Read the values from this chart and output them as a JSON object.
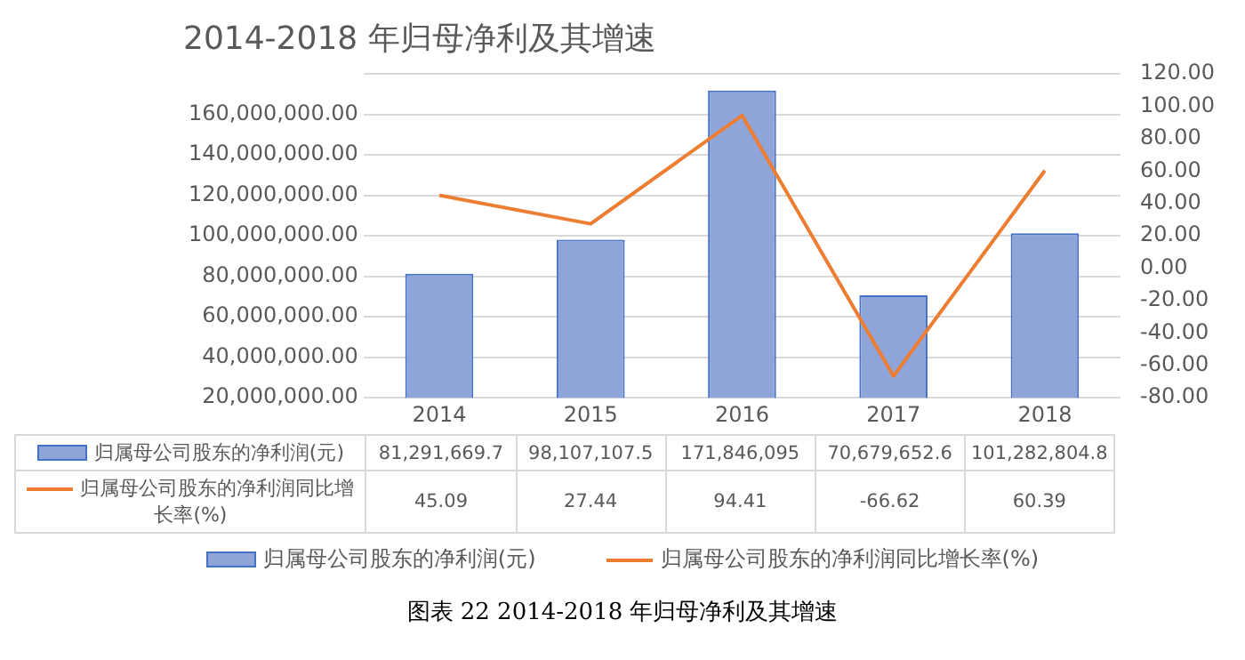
{
  "chart_data": {
    "type": "bar",
    "title": "2014-2018 年归母净利及其增速",
    "categories": [
      "2014",
      "2015",
      "2016",
      "2017",
      "2018"
    ],
    "series": [
      {
        "name": "归属母公司股东的净利润(元)",
        "color": "#8fa5d9",
        "values": [
          81291669.7,
          98107107.5,
          171846095,
          70679652.6,
          101282804.8
        ],
        "value_labels": [
          "81,291,669.7",
          "98,107,107.5",
          "171,846,095",
          "70,679,652.6",
          "101,282,804.8"
        ]
      },
      {
        "name": "归属母公司股东的净利润同比增长率(%)",
        "type": "line",
        "axis": "y2",
        "color": "#ed7d31",
        "values": [
          45.09,
          27.44,
          94.41,
          -66.62,
          60.39
        ],
        "value_labels": [
          "45.09",
          "27.44",
          "94.41",
          "-66.62",
          "60.39"
        ]
      }
    ],
    "ylim": [
      20000000,
      180000000
    ],
    "yticks": [
      {
        "value": 20000000,
        "label": "20,000,000.00"
      },
      {
        "value": 40000000,
        "label": "40,000,000.00"
      },
      {
        "value": 60000000,
        "label": "60,000,000.00"
      },
      {
        "value": 80000000,
        "label": "80,000,000.00"
      },
      {
        "value": 100000000,
        "label": "100,000,000.00"
      },
      {
        "value": 120000000,
        "label": "120,000,000.00"
      },
      {
        "value": 140000000,
        "label": "140,000,000.00"
      },
      {
        "value": 160000000,
        "label": "160,000,000.00"
      },
      {
        "value": 180000000,
        "label": null
      }
    ],
    "y2lim": [
      -80,
      120
    ],
    "y2ticks": [
      {
        "value": -80,
        "label": "-80.00"
      },
      {
        "value": -60,
        "label": "-60.00"
      },
      {
        "value": -40,
        "label": "-40.00"
      },
      {
        "value": -20,
        "label": "-20.00"
      },
      {
        "value": 0,
        "label": "0.00"
      },
      {
        "value": 20,
        "label": "20.00"
      },
      {
        "value": 40,
        "label": "40.00"
      },
      {
        "value": 60,
        "label": "60.00"
      },
      {
        "value": 80,
        "label": "80.00"
      },
      {
        "value": 100,
        "label": "100.00"
      },
      {
        "value": 120,
        "label": "120.00"
      }
    ],
    "grid": "y",
    "legend": "bottom",
    "marker": "none",
    "line_style": "solid",
    "annotations": [
      "图表 22 2014-2018 年归母净利及其增速"
    ]
  }
}
